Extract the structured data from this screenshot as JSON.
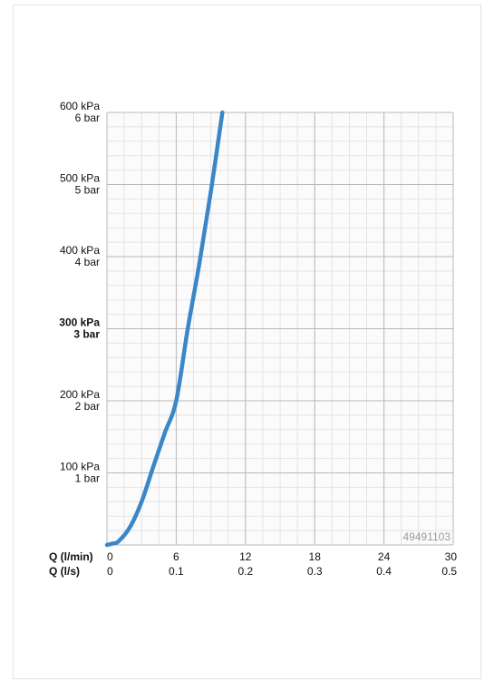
{
  "chart_data": {
    "type": "line",
    "title": "",
    "product_code": "49491103",
    "y_axis": {
      "ticks": [
        {
          "value": 600,
          "kpa": "600 kPa",
          "bar": "6 bar",
          "bold": false
        },
        {
          "value": 500,
          "kpa": "500 kPa",
          "bar": "5 bar",
          "bold": false
        },
        {
          "value": 400,
          "kpa": "400 kPa",
          "bar": "4 bar",
          "bold": false
        },
        {
          "value": 300,
          "kpa": "300 kPa",
          "bar": "3 bar",
          "bold": true
        },
        {
          "value": 200,
          "kpa": "200 kPa",
          "bar": "2 bar",
          "bold": false
        },
        {
          "value": 100,
          "kpa": "100 kPa",
          "bar": "1 bar",
          "bold": false
        }
      ],
      "range": [
        0,
        600
      ],
      "unit": "kPa"
    },
    "x_axis": {
      "label_primary": "Q (l/min)",
      "label_secondary": "Q (l/s)",
      "ticks_primary": [
        "0",
        "6",
        "12",
        "18",
        "24",
        "30"
      ],
      "ticks_secondary": [
        "0",
        "0.1",
        "0.2",
        "0.3",
        "0.4",
        "0.5"
      ],
      "range": [
        0,
        30
      ],
      "unit": "l/min"
    },
    "grid": true,
    "series": [
      {
        "color": "#3a87c8",
        "x": [
          0,
          0.5,
          1,
          2,
          3,
          4,
          5,
          6,
          7,
          8,
          9,
          10
        ],
        "y": [
          0,
          2,
          5,
          25,
          60,
          108,
          155,
          200,
          300,
          390,
          490,
          600
        ]
      }
    ]
  }
}
